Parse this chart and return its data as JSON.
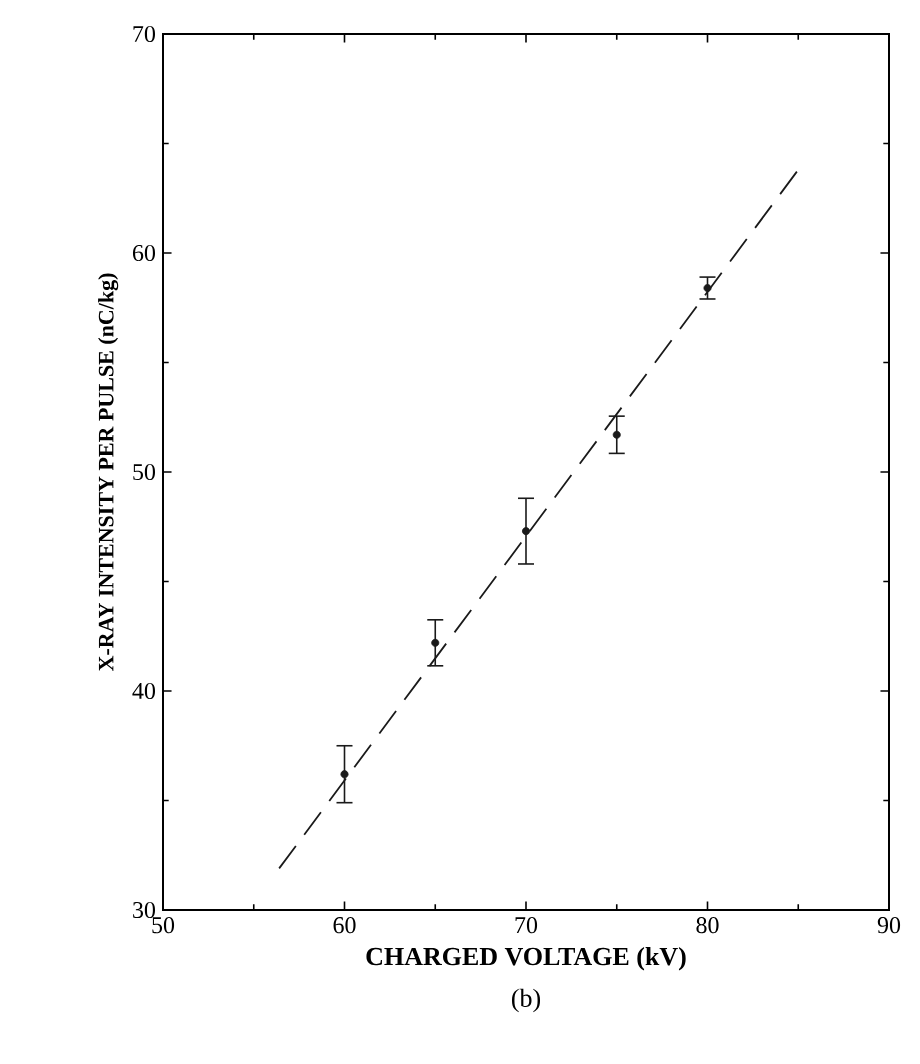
{
  "chart_data": {
    "type": "scatter",
    "xlabel": "CHARGED VOLTAGE (kV)",
    "ylabel": "X-RAY INTENSITY PER PULSE (nC/kg)",
    "annotations": [
      "(b)"
    ],
    "xlim": [
      50,
      90
    ],
    "xticks": [
      50,
      60,
      70,
      80,
      90
    ],
    "ylim": [
      30,
      70
    ],
    "yticks": [
      30,
      40,
      50,
      60,
      70
    ],
    "series": [
      {
        "color": "#1a1a1a",
        "marker": "circle",
        "x": [
          60,
          65,
          70,
          75,
          80
        ],
        "values": [
          36.2,
          42.2,
          47.3,
          51.7,
          58.4
        ],
        "errors": [
          1.3,
          1.05,
          1.5,
          0.85,
          0.5
        ]
      },
      {
        "type": "line",
        "color": "#1a1a1a",
        "line_style": "dashed",
        "marker": "none",
        "x": [
          56.4,
          85.0
        ],
        "values": [
          31.9,
          63.8
        ]
      }
    ]
  }
}
